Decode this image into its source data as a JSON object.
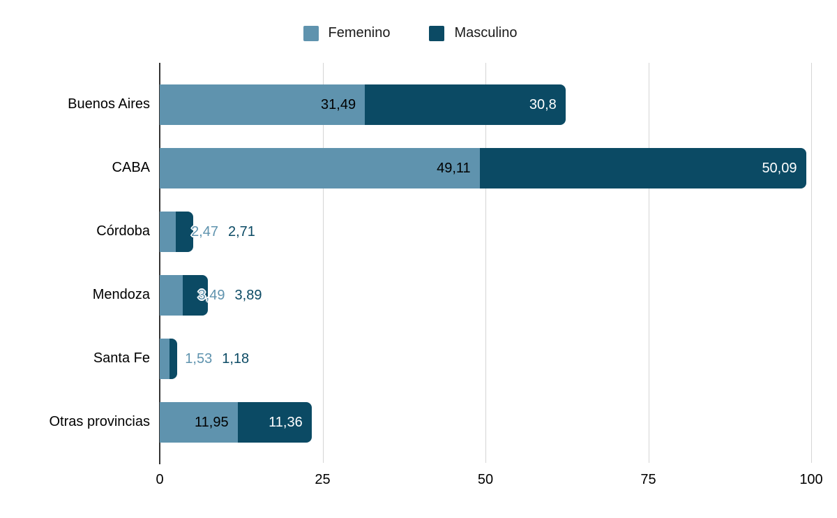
{
  "chart_data": {
    "type": "bar",
    "orientation": "horizontal",
    "stacked": true,
    "title": "",
    "xlabel": "",
    "ylabel": "",
    "categories": [
      "Buenos Aires",
      "CABA",
      "Córdoba",
      "Mendoza",
      "Santa Fe",
      "Otras provincias"
    ],
    "series": [
      {
        "name": "Femenino",
        "color": "#5f93ae",
        "values": [
          31.49,
          49.11,
          2.47,
          3.49,
          1.53,
          11.95
        ],
        "labels": [
          "31,49",
          "49,11",
          "2,47",
          "3,49",
          "1,53",
          "11,95"
        ],
        "inside_label_color": "#000000"
      },
      {
        "name": "Masculino",
        "color": "#0b4a64",
        "values": [
          30.8,
          50.09,
          2.71,
          3.89,
          1.18,
          11.36
        ],
        "labels": [
          "30,8",
          "50,09",
          "2,71",
          "3,89",
          "1,18",
          "11,36"
        ],
        "inside_label_color": "#ffffff"
      }
    ],
    "xlim": [
      0,
      100
    ],
    "x_ticks": [
      "0",
      "25",
      "50",
      "75",
      "100"
    ],
    "x_tick_values": [
      0,
      25,
      50,
      75,
      100
    ],
    "legend_position": "top",
    "grid": true,
    "style": {
      "gridline_color": "#d5d5d5",
      "axis_line_color": "#333333",
      "tick_text_color": "#000000",
      "category_text_color": "#000000",
      "legend_text_color": "#1a1a1a",
      "background": "#ffffff"
    }
  }
}
